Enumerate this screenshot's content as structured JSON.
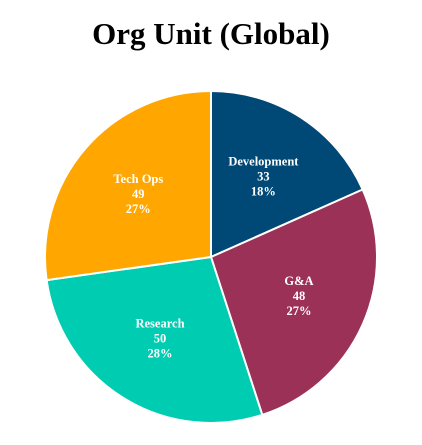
{
  "chart_data": {
    "type": "pie",
    "title": "Org Unit (Global)",
    "slices": [
      {
        "label": "Development",
        "value": 33,
        "percent": "18%",
        "color": "#004876"
      },
      {
        "label": "G&A",
        "value": 48,
        "percent": "27%",
        "color": "#9b3157"
      },
      {
        "label": "Research",
        "value": 50,
        "percent": "28%",
        "color": "#00ccb2"
      },
      {
        "label": "Tech Ops",
        "value": 49,
        "percent": "27%",
        "color": "#ffa600"
      }
    ]
  }
}
